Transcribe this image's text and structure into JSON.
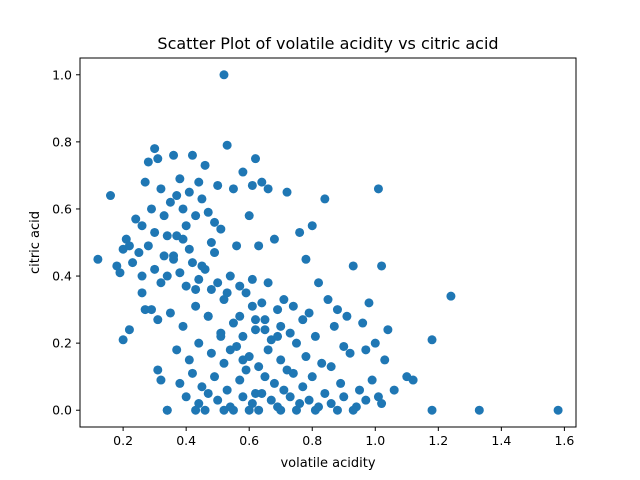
{
  "chart_data": {
    "type": "scatter",
    "title": "Scatter Plot of volatile acidity vs citric acid",
    "xlabel": "volatile acidity",
    "ylabel": "citric acid",
    "xlim": [
      0.0632,
      1.6368
    ],
    "ylim": [
      -0.05,
      1.05
    ],
    "xticks": [
      0.2,
      0.4,
      0.6,
      0.8,
      1.0,
      1.2,
      1.4,
      1.6
    ],
    "xtick_labels": [
      "0.2",
      "0.4",
      "0.6",
      "0.8",
      "1.0",
      "1.2",
      "1.4",
      "1.6"
    ],
    "yticks": [
      0.0,
      0.2,
      0.4,
      0.6,
      0.8,
      1.0
    ],
    "ytick_labels": [
      "0.0",
      "0.2",
      "0.4",
      "0.6",
      "0.8",
      "1.0"
    ],
    "grid": false,
    "marker_color": "#1f77b4",
    "series": [
      {
        "x": [
          0.52,
          0.53,
          0.3,
          0.31,
          0.28,
          0.36,
          0.38,
          0.42,
          0.46,
          0.44,
          0.5,
          0.66,
          0.64,
          0.27,
          0.32,
          0.58,
          0.55,
          0.61,
          0.62,
          0.72,
          0.84,
          1.01,
          0.16,
          0.21,
          0.24,
          0.26,
          0.29,
          0.33,
          0.35,
          0.37,
          0.39,
          0.41,
          0.43,
          0.45,
          0.47,
          0.49,
          0.12,
          0.18,
          0.2,
          0.22,
          0.25,
          0.34,
          0.4,
          0.48,
          0.51,
          0.56,
          0.6,
          0.63,
          0.68,
          0.76,
          0.78,
          0.8,
          0.93,
          1.02,
          0.19,
          0.23,
          0.26,
          0.3,
          0.32,
          0.36,
          0.38,
          0.4,
          0.42,
          0.44,
          0.46,
          0.48,
          0.5,
          0.52,
          0.54,
          0.57,
          0.59,
          0.61,
          0.64,
          0.66,
          0.69,
          0.71,
          0.74,
          0.77,
          0.79,
          0.82,
          0.85,
          0.88,
          0.91,
          0.96,
          0.98,
          1.04,
          1.24,
          0.2,
          0.22,
          0.27,
          0.31,
          0.35,
          0.39,
          0.43,
          0.47,
          0.51,
          0.55,
          0.58,
          0.62,
          0.65,
          0.67,
          0.7,
          0.73,
          0.75,
          0.81,
          0.87,
          0.9,
          0.97,
          1.0,
          1.18,
          0.32,
          0.37,
          0.41,
          0.44,
          0.48,
          0.52,
          0.56,
          0.6,
          0.63,
          0.66,
          0.7,
          0.72,
          0.78,
          0.83,
          0.86,
          0.92,
          0.99,
          1.03,
          1.1,
          1.12,
          1.06,
          0.31,
          0.34,
          0.38,
          0.42,
          0.45,
          0.49,
          0.53,
          0.57,
          0.59,
          0.62,
          0.65,
          0.68,
          0.71,
          0.74,
          0.77,
          0.8,
          0.84,
          0.89,
          0.95,
          1.01,
          0.34,
          0.4,
          0.44,
          0.47,
          0.5,
          0.54,
          0.58,
          0.61,
          0.64,
          0.67,
          0.69,
          0.73,
          0.76,
          0.79,
          0.82,
          0.86,
          0.9,
          0.94,
          0.97,
          1.02,
          1.18,
          1.33,
          1.58,
          0.43,
          0.46,
          0.52,
          0.55,
          0.6,
          0.63,
          0.7,
          0.75,
          0.81,
          0.88,
          0.93,
          0.26,
          0.29,
          0.33,
          0.37,
          0.41,
          0.45,
          0.49,
          0.53,
          0.57,
          0.61,
          0.65,
          0.69,
          0.28,
          0.3,
          0.34,
          0.36,
          0.39,
          0.43,
          0.47,
          0.51,
          0.54,
          0.58,
          0.62
        ],
        "y": [
          1.0,
          0.79,
          0.78,
          0.75,
          0.74,
          0.76,
          0.69,
          0.76,
          0.73,
          0.68,
          0.67,
          0.66,
          0.68,
          0.68,
          0.66,
          0.71,
          0.66,
          0.67,
          0.75,
          0.65,
          0.63,
          0.66,
          0.64,
          0.51,
          0.57,
          0.55,
          0.6,
          0.58,
          0.62,
          0.64,
          0.6,
          0.65,
          0.58,
          0.63,
          0.59,
          0.56,
          0.45,
          0.43,
          0.48,
          0.49,
          0.47,
          0.52,
          0.55,
          0.5,
          0.54,
          0.49,
          0.58,
          0.49,
          0.51,
          0.53,
          0.45,
          0.55,
          0.43,
          0.43,
          0.41,
          0.44,
          0.4,
          0.42,
          0.38,
          0.46,
          0.41,
          0.37,
          0.44,
          0.39,
          0.42,
          0.36,
          0.38,
          0.33,
          0.4,
          0.37,
          0.35,
          0.39,
          0.32,
          0.38,
          0.3,
          0.33,
          0.31,
          0.27,
          0.29,
          0.38,
          0.33,
          0.3,
          0.28,
          0.26,
          0.32,
          0.24,
          0.34,
          0.21,
          0.24,
          0.3,
          0.27,
          0.29,
          0.25,
          0.31,
          0.28,
          0.23,
          0.26,
          0.22,
          0.27,
          0.24,
          0.21,
          0.25,
          0.23,
          0.2,
          0.22,
          0.25,
          0.19,
          0.18,
          0.2,
          0.21,
          0.09,
          0.18,
          0.15,
          0.2,
          0.17,
          0.14,
          0.19,
          0.16,
          0.13,
          0.18,
          0.15,
          0.12,
          0.16,
          0.14,
          0.13,
          0.17,
          0.09,
          0.15,
          0.1,
          0.09,
          0.06,
          0.12,
          0.0,
          0.08,
          0.11,
          0.07,
          0.1,
          0.06,
          0.09,
          0.12,
          0.05,
          0.1,
          0.08,
          0.06,
          0.11,
          0.07,
          0.1,
          0.05,
          0.08,
          0.06,
          0.04,
          0.0,
          0.04,
          0.02,
          0.05,
          0.03,
          0.01,
          0.04,
          0.02,
          0.05,
          0.03,
          0.01,
          0.04,
          0.02,
          0.03,
          0.01,
          0.02,
          0.04,
          0.01,
          0.03,
          0.02,
          0.0,
          0.0,
          0.0,
          0.0,
          0.0,
          0.0,
          0.0,
          0.0,
          0.0,
          0.0,
          0.0,
          0.0,
          0.0,
          0.0,
          0.35,
          0.3,
          0.46,
          0.52,
          0.48,
          0.43,
          0.47,
          0.35,
          0.28,
          0.31,
          0.27,
          0.22,
          0.49,
          0.53,
          0.4,
          0.45,
          0.51,
          0.36,
          0.28,
          0.22,
          0.18,
          0.15,
          0.24
        ]
      }
    ]
  }
}
